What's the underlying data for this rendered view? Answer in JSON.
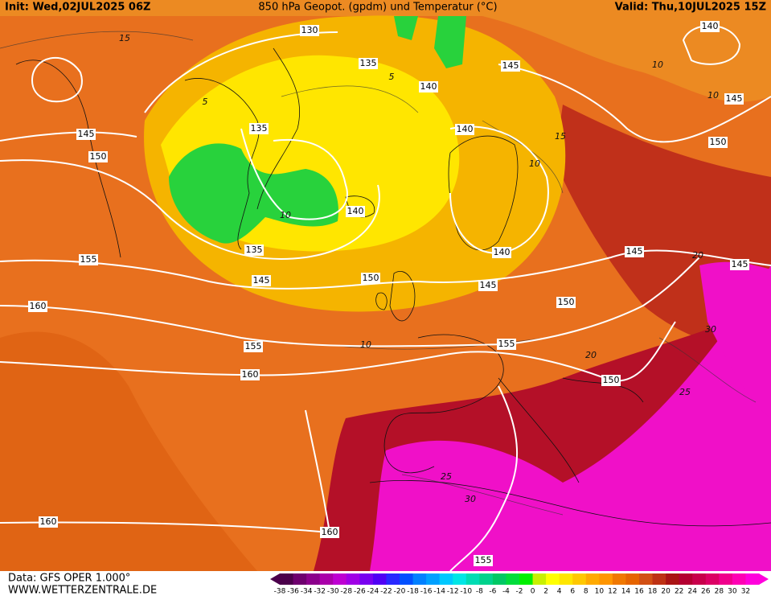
{
  "header": {
    "init": "Init: Wed,02JUL2025 06Z",
    "title": "850 hPa Geopot. (gpdm) und Temperatur (°C)",
    "valid": "Valid: Thu,10JUL2025 15Z"
  },
  "footer": {
    "source": "Data: GFS OPER 1.000°",
    "website": "WWW.WETTERZENTRALE.DE"
  },
  "geopotential_labels": [
    130,
    135,
    140,
    145,
    140,
    145,
    150,
    145,
    150,
    135,
    140,
    140,
    135,
    140,
    145,
    145,
    155,
    145,
    150,
    145,
    150,
    160,
    155,
    155,
    160,
    150,
    160,
    160,
    155
  ],
  "temperature_labels": [
    15,
    10,
    10,
    5,
    5,
    10,
    10,
    15,
    10,
    20,
    30,
    25,
    20,
    25,
    30
  ],
  "color_scale": {
    "values": [
      -38,
      -36,
      -34,
      -32,
      -30,
      -28,
      -26,
      -24,
      -22,
      -20,
      -18,
      -16,
      -14,
      -12,
      -10,
      -8,
      -6,
      -4,
      -2,
      0,
      2,
      4,
      6,
      8,
      10,
      12,
      14,
      16,
      18,
      20,
      22,
      24,
      26,
      28,
      30,
      32
    ],
    "colors": [
      "#4b004b",
      "#6e006e",
      "#8c008c",
      "#aa00aa",
      "#be00d2",
      "#a000e6",
      "#7800f0",
      "#5000f5",
      "#2828ff",
      "#0050ff",
      "#0080ff",
      "#00a0ff",
      "#00c8ff",
      "#00e6e6",
      "#00dcb4",
      "#00d28c",
      "#00c864",
      "#00dc3c",
      "#00f000",
      "#c8f000",
      "#ffff00",
      "#ffe600",
      "#ffc800",
      "#ffaa00",
      "#ff9600",
      "#f07800",
      "#e66400",
      "#d25014",
      "#be3214",
      "#aa1414",
      "#b40032",
      "#c8004b",
      "#dc0064",
      "#f0008c",
      "#ff00b4",
      "#ff00dc"
    ]
  }
}
